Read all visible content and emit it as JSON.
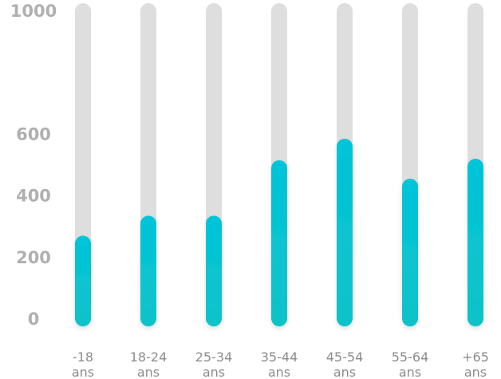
{
  "chart_data": {
    "type": "bar",
    "categories": [
      [
        "-18",
        "ans"
      ],
      [
        "18-24",
        "ans"
      ],
      [
        "25-34",
        "ans"
      ],
      [
        "35-44",
        "ans"
      ],
      [
        "45-54",
        "ans"
      ],
      [
        "55-64",
        "ans"
      ],
      [
        "+65",
        "ans"
      ]
    ],
    "values": [
      245,
      310,
      310,
      490,
      560,
      430,
      495
    ],
    "ylim": [
      0,
      1000
    ],
    "yticks": [
      "0",
      "200",
      "400",
      "600",
      "1000"
    ],
    "ytick_values": [
      0,
      200,
      400,
      600,
      1000
    ],
    "track_value": 1000,
    "grid": false,
    "legend": "none",
    "colors": {
      "track": "#dedede",
      "bar_top": "#00c4d8",
      "bar_bottom": "#0fc3c9",
      "tick_text": "#b0b0b0",
      "label_text": "#8c8c8c"
    }
  }
}
